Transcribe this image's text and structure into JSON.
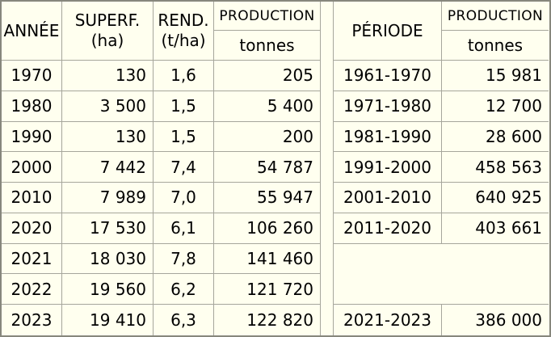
{
  "colors": {
    "background": "#FFFFEF",
    "grid_line": "#A6A69C",
    "outer_border": "#87877D",
    "text": "#000000"
  },
  "left": {
    "header": {
      "annee": "ANNÉE",
      "superf1": "SUPERF.",
      "superf2": "(ha)",
      "rend1": "REND.",
      "rend2": "(t/ha)",
      "production": "PRODUCTION",
      "tonnes": "tonnes"
    },
    "rows": [
      {
        "annee": "1970",
        "superf": "130",
        "rend": "1,6",
        "prod": "205"
      },
      {
        "annee": "1980",
        "superf": "3 500",
        "rend": "1,5",
        "prod": "5 400"
      },
      {
        "annee": "1990",
        "superf": "130",
        "rend": "1,5",
        "prod": "200"
      },
      {
        "annee": "2000",
        "superf": "7 442",
        "rend": "7,4",
        "prod": "54 787"
      },
      {
        "annee": "2010",
        "superf": "7 989",
        "rend": "7,0",
        "prod": "55 947"
      },
      {
        "annee": "2020",
        "superf": "17 530",
        "rend": "6,1",
        "prod": "106 260"
      },
      {
        "annee": "2021",
        "superf": "18 030",
        "rend": "7,8",
        "prod": "141 460"
      },
      {
        "annee": "2022",
        "superf": "19 560",
        "rend": "6,2",
        "prod": "121 720"
      },
      {
        "annee": "2023",
        "superf": "19 410",
        "rend": "6,3",
        "prod": "122 820"
      }
    ]
  },
  "right": {
    "header": {
      "periode": "PÉRIODE",
      "production": "PRODUCTION",
      "tonnes": "tonnes"
    },
    "rows": [
      {
        "periode": "1961-1970",
        "prod": "15 981"
      },
      {
        "periode": "1971-1980",
        "prod": "12 700"
      },
      {
        "periode": "1981-1990",
        "prod": "28 600"
      },
      {
        "periode": "1991-2000",
        "prod": "458 563"
      },
      {
        "periode": "2001-2010",
        "prod": "640 925"
      },
      {
        "periode": "2011-2020",
        "prod": "403 661"
      }
    ],
    "last_row": {
      "periode": "2021-2023",
      "prod": "386 000"
    }
  },
  "chart_data": [
    {
      "type": "table",
      "columns": [
        "ANNÉE",
        "SUPERF. (ha)",
        "REND. (t/ha)",
        "PRODUCTION tonnes"
      ],
      "rows": [
        [
          "1970",
          "130",
          "1,6",
          "205"
        ],
        [
          "1980",
          "3 500",
          "1,5",
          "5 400"
        ],
        [
          "1990",
          "130",
          "1,5",
          "200"
        ],
        [
          "2000",
          "7 442",
          "7,4",
          "54 787"
        ],
        [
          "2010",
          "7 989",
          "7,0",
          "55 947"
        ],
        [
          "2020",
          "17 530",
          "6,1",
          "106 260"
        ],
        [
          "2021",
          "18 030",
          "7,8",
          "141 460"
        ],
        [
          "2022",
          "19 560",
          "6,2",
          "121 720"
        ],
        [
          "2023",
          "19 410",
          "6,3",
          "122 820"
        ]
      ]
    },
    {
      "type": "table",
      "columns": [
        "PÉRIODE",
        "PRODUCTION tonnes"
      ],
      "rows": [
        [
          "1961-1970",
          "15 981"
        ],
        [
          "1971-1980",
          "12 700"
        ],
        [
          "1981-1990",
          "28 600"
        ],
        [
          "1991-2000",
          "458 563"
        ],
        [
          "2001-2010",
          "640 925"
        ],
        [
          "2011-2020",
          "403 661"
        ],
        [
          "2021-2023",
          "386 000"
        ]
      ]
    }
  ]
}
